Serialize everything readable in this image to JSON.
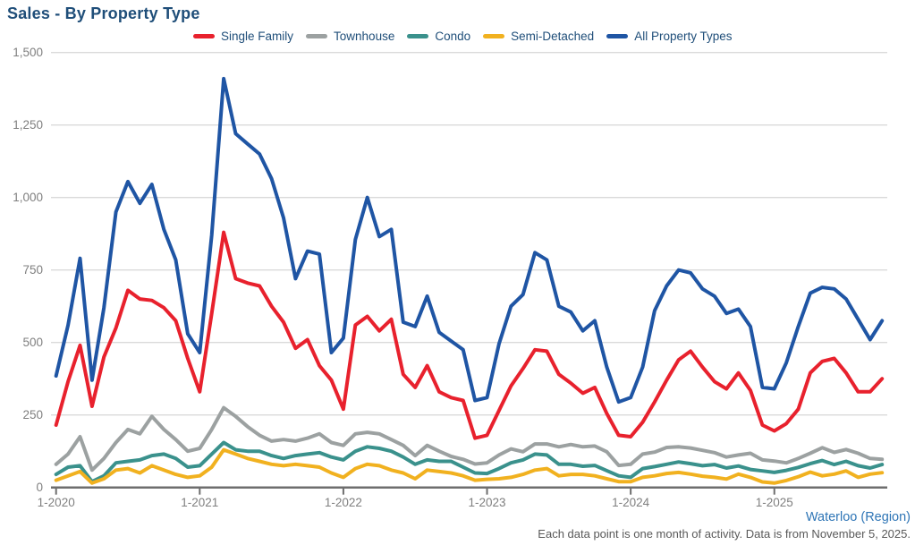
{
  "header": {
    "title": "Sales - By Property Type"
  },
  "footer": {
    "region_link": "Waterloo (Region)",
    "note": "Each data point is one month of activity. Data is from November 5, 2025."
  },
  "colors": {
    "title": "#1F4E79",
    "legend_text": "#1F4E79",
    "axis_text": "#7F7F7F",
    "gridline": "#DADADA",
    "axis_line": "#6E6E6E",
    "footer_link": "#2E75B6",
    "footer_note": "#595959"
  },
  "chart_data": {
    "type": "line",
    "title": "Sales - By Property Type",
    "xlabel": "",
    "ylabel": "",
    "ylim": [
      0,
      1500
    ],
    "y_ticks": [
      0,
      250,
      500,
      750,
      1000,
      1250,
      1500
    ],
    "grid": "horizontal",
    "legend_position": "top",
    "x_tick_labels": [
      "1-2020",
      "1-2021",
      "1-2022",
      "1-2023",
      "1-2024",
      "1-2025"
    ],
    "x_tick_positions": [
      0,
      12,
      24,
      36,
      48,
      60
    ],
    "x": [
      "1-2020",
      "2-2020",
      "3-2020",
      "4-2020",
      "5-2020",
      "6-2020",
      "7-2020",
      "8-2020",
      "9-2020",
      "10-2020",
      "11-2020",
      "12-2020",
      "1-2021",
      "2-2021",
      "3-2021",
      "4-2021",
      "5-2021",
      "6-2021",
      "7-2021",
      "8-2021",
      "9-2021",
      "10-2021",
      "11-2021",
      "12-2021",
      "1-2022",
      "2-2022",
      "3-2022",
      "4-2022",
      "5-2022",
      "6-2022",
      "7-2022",
      "8-2022",
      "9-2022",
      "10-2022",
      "11-2022",
      "12-2022",
      "1-2023",
      "2-2023",
      "3-2023",
      "4-2023",
      "5-2023",
      "6-2023",
      "7-2023",
      "8-2023",
      "9-2023",
      "10-2023",
      "11-2023",
      "12-2023",
      "1-2024",
      "2-2024",
      "3-2024",
      "4-2024",
      "5-2024",
      "6-2024",
      "7-2024",
      "8-2024",
      "9-2024",
      "10-2024",
      "11-2024",
      "12-2024",
      "1-2025",
      "2-2025",
      "3-2025",
      "4-2025",
      "5-2025",
      "6-2025",
      "7-2025",
      "8-2025",
      "9-2025",
      "10-2025"
    ],
    "series": [
      {
        "name": "Single Family",
        "color": "#E8212D",
        "values": [
          215,
          365,
          490,
          280,
          450,
          550,
          680,
          650,
          645,
          620,
          575,
          445,
          330,
          600,
          880,
          720,
          705,
          695,
          625,
          570,
          480,
          510,
          420,
          370,
          270,
          560,
          590,
          540,
          580,
          390,
          345,
          420,
          330,
          310,
          300,
          170,
          180,
          265,
          350,
          410,
          475,
          470,
          390,
          360,
          325,
          345,
          255,
          180,
          175,
          225,
          295,
          370,
          440,
          470,
          415,
          365,
          340,
          395,
          335,
          215,
          195,
          220,
          270,
          395,
          435,
          445,
          395,
          330,
          330,
          375
        ]
      },
      {
        "name": "Townhouse",
        "color": "#9CA1A1",
        "values": [
          80,
          115,
          175,
          60,
          100,
          155,
          200,
          185,
          245,
          200,
          165,
          125,
          135,
          200,
          275,
          245,
          210,
          180,
          160,
          165,
          160,
          170,
          185,
          155,
          145,
          185,
          190,
          185,
          165,
          145,
          110,
          145,
          125,
          107,
          97,
          81,
          85,
          112,
          133,
          123,
          150,
          150,
          140,
          148,
          140,
          143,
          123,
          76,
          80,
          115,
          122,
          138,
          140,
          136,
          128,
          120,
          105,
          112,
          118,
          95,
          91,
          85,
          100,
          118,
          137,
          121,
          131,
          118,
          100,
          97
        ]
      },
      {
        "name": "Condo",
        "color": "#3A918C",
        "values": [
          45,
          70,
          75,
          20,
          40,
          85,
          90,
          95,
          110,
          115,
          100,
          70,
          75,
          115,
          155,
          130,
          125,
          125,
          110,
          100,
          110,
          115,
          120,
          105,
          95,
          125,
          140,
          135,
          125,
          105,
          80,
          95,
          90,
          90,
          70,
          50,
          48,
          65,
          85,
          95,
          115,
          112,
          80,
          80,
          73,
          76,
          58,
          40,
          35,
          65,
          72,
          80,
          88,
          82,
          75,
          79,
          67,
          74,
          62,
          57,
          52,
          59,
          69,
          82,
          93,
          79,
          90,
          75,
          67,
          79
        ]
      },
      {
        "name": "Semi-Detached",
        "color": "#F1B11F",
        "values": [
          25,
          40,
          55,
          15,
          30,
          60,
          65,
          50,
          75,
          60,
          45,
          35,
          40,
          70,
          130,
          115,
          100,
          90,
          80,
          75,
          80,
          75,
          70,
          50,
          35,
          65,
          80,
          75,
          60,
          50,
          30,
          60,
          55,
          50,
          40,
          25,
          28,
          30,
          35,
          45,
          60,
          65,
          40,
          45,
          45,
          40,
          30,
          20,
          20,
          35,
          40,
          48,
          52,
          46,
          39,
          35,
          29,
          46,
          35,
          19,
          15,
          24,
          37,
          53,
          40,
          46,
          57,
          35,
          46,
          51
        ]
      },
      {
        "name": "All Property Types",
        "color": "#1F55A4",
        "values": [
          385,
          560,
          790,
          370,
          620,
          950,
          1055,
          980,
          1045,
          890,
          785,
          530,
          465,
          870,
          1410,
          1220,
          1185,
          1150,
          1065,
          930,
          720,
          815,
          805,
          465,
          515,
          855,
          1000,
          865,
          890,
          570,
          555,
          660,
          535,
          505,
          475,
          300,
          310,
          495,
          625,
          665,
          810,
          785,
          625,
          605,
          540,
          575,
          415,
          295,
          310,
          415,
          610,
          695,
          750,
          740,
          685,
          660,
          600,
          615,
          555,
          345,
          340,
          430,
          555,
          670,
          690,
          685,
          650,
          580,
          510,
          575
        ]
      }
    ]
  }
}
